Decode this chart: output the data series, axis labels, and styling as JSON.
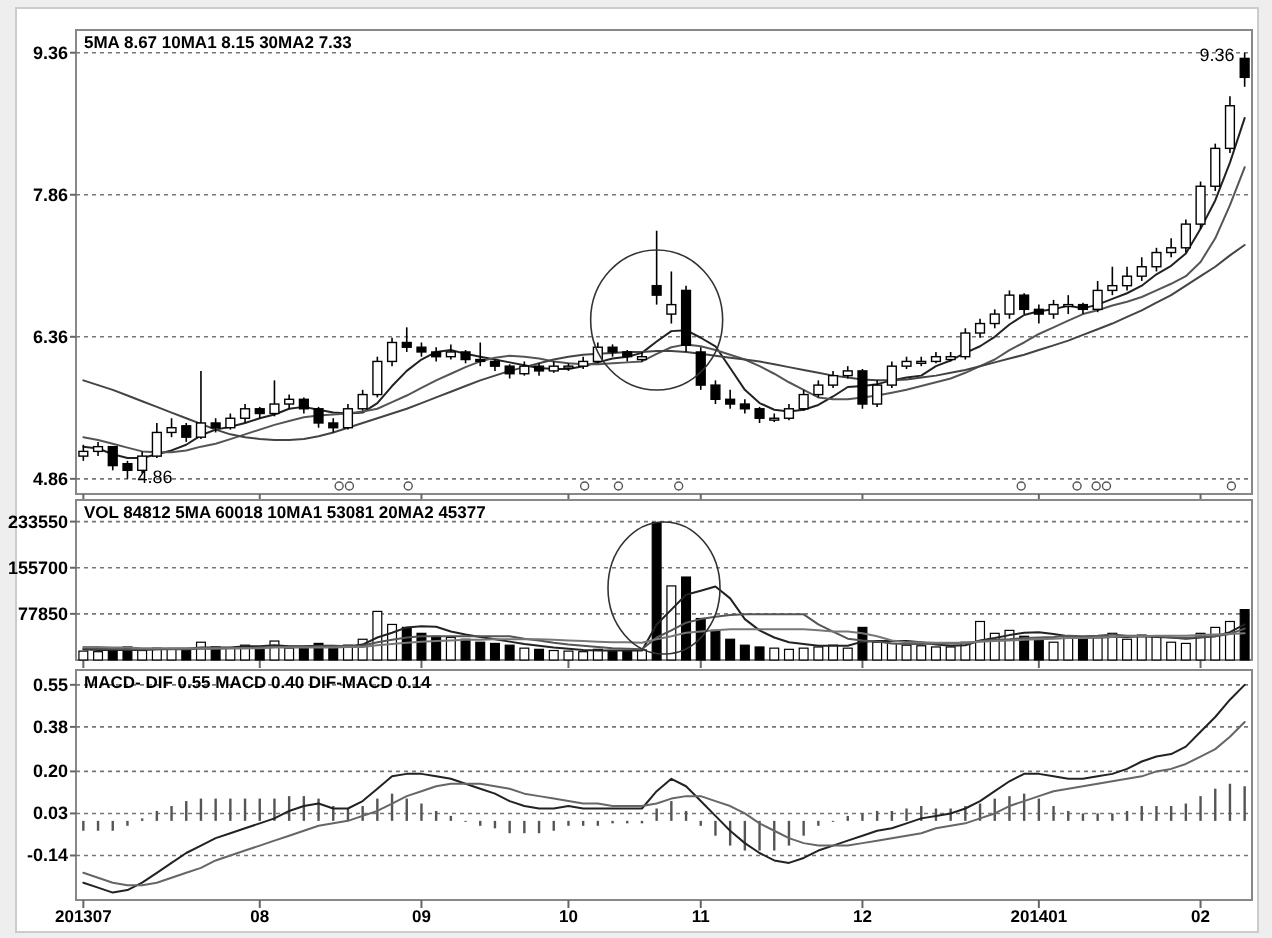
{
  "chart_data": [
    {
      "type": "candlestick",
      "title": "5MA 8.67  10MA1 8.15  30MA2 7.33",
      "categories": [
        "201307",
        null,
        null,
        null,
        null,
        null,
        null,
        null,
        null,
        null,
        null,
        null,
        "08",
        null,
        null,
        null,
        null,
        null,
        null,
        null,
        null,
        null,
        null,
        "09",
        null,
        null,
        null,
        null,
        null,
        null,
        null,
        null,
        null,
        "10",
        null,
        null,
        null,
        null,
        null,
        null,
        null,
        null,
        "11",
        null,
        null,
        null,
        null,
        null,
        null,
        null,
        null,
        null,
        null,
        "12",
        null,
        null,
        null,
        null,
        null,
        null,
        null,
        null,
        null,
        null,
        null,
        "201401",
        null,
        null,
        null,
        null,
        null,
        null,
        null,
        null,
        null,
        null,
        "02",
        null,
        null,
        null
      ],
      "ohlc": [
        [
          5.1,
          5.22,
          5.05,
          5.15
        ],
        [
          5.15,
          5.25,
          5.1,
          5.2
        ],
        [
          5.2,
          5.2,
          4.95,
          5.0
        ],
        [
          5.02,
          5.05,
          4.86,
          4.95
        ],
        [
          4.95,
          5.15,
          4.92,
          5.1
        ],
        [
          5.1,
          5.45,
          5.08,
          5.35
        ],
        [
          5.35,
          5.5,
          5.3,
          5.4
        ],
        [
          5.42,
          5.45,
          5.25,
          5.3
        ],
        [
          5.3,
          6.0,
          5.28,
          5.45
        ],
        [
          5.45,
          5.5,
          5.35,
          5.4
        ],
        [
          5.4,
          5.55,
          5.38,
          5.5
        ],
        [
          5.5,
          5.65,
          5.45,
          5.6
        ],
        [
          5.6,
          5.62,
          5.5,
          5.55
        ],
        [
          5.55,
          5.9,
          5.52,
          5.65
        ],
        [
          5.65,
          5.75,
          5.6,
          5.7
        ],
        [
          5.7,
          5.72,
          5.55,
          5.6
        ],
        [
          5.6,
          5.62,
          5.4,
          5.45
        ],
        [
          5.45,
          5.5,
          5.35,
          5.4
        ],
        [
          5.4,
          5.65,
          5.38,
          5.6
        ],
        [
          5.6,
          5.8,
          5.58,
          5.75
        ],
        [
          5.75,
          6.15,
          5.72,
          6.1
        ],
        [
          6.1,
          6.35,
          6.05,
          6.3
        ],
        [
          6.3,
          6.46,
          6.2,
          6.25
        ],
        [
          6.25,
          6.3,
          6.15,
          6.2
        ],
        [
          6.2,
          6.25,
          6.1,
          6.15
        ],
        [
          6.15,
          6.28,
          6.12,
          6.2
        ],
        [
          6.2,
          6.22,
          6.08,
          6.12
        ],
        [
          6.12,
          6.3,
          6.05,
          6.1
        ],
        [
          6.1,
          6.12,
          6.0,
          6.05
        ],
        [
          6.05,
          6.07,
          5.92,
          5.97
        ],
        [
          5.97,
          6.1,
          5.95,
          6.05
        ],
        [
          6.05,
          6.08,
          5.95,
          6.0
        ],
        [
          6.0,
          6.1,
          5.98,
          6.05
        ],
        [
          6.03,
          6.08,
          6.0,
          6.05
        ],
        [
          6.05,
          6.15,
          6.02,
          6.1
        ],
        [
          6.1,
          6.3,
          6.08,
          6.25
        ],
        [
          6.25,
          6.28,
          6.15,
          6.2
        ],
        [
          6.2,
          6.22,
          6.1,
          6.15
        ],
        [
          6.12,
          6.2,
          6.1,
          6.15
        ],
        [
          6.9,
          7.48,
          6.7,
          6.8
        ],
        [
          6.6,
          7.05,
          6.5,
          6.7
        ],
        [
          6.85,
          6.9,
          6.2,
          6.27
        ],
        [
          6.2,
          6.25,
          5.8,
          5.85
        ],
        [
          5.85,
          5.9,
          5.65,
          5.7
        ],
        [
          5.7,
          5.8,
          5.6,
          5.65
        ],
        [
          5.65,
          5.7,
          5.55,
          5.6
        ],
        [
          5.6,
          5.62,
          5.45,
          5.5
        ],
        [
          5.48,
          5.55,
          5.46,
          5.5
        ],
        [
          5.5,
          5.65,
          5.48,
          5.6
        ],
        [
          5.6,
          5.8,
          5.58,
          5.75
        ],
        [
          5.75,
          5.9,
          5.72,
          5.85
        ],
        [
          5.85,
          6.0,
          5.82,
          5.95
        ],
        [
          5.95,
          6.05,
          5.92,
          6.0
        ],
        [
          6.0,
          6.02,
          5.6,
          5.65
        ],
        [
          5.65,
          5.9,
          5.62,
          5.85
        ],
        [
          5.85,
          6.1,
          5.82,
          6.05
        ],
        [
          6.05,
          6.15,
          6.02,
          6.1
        ],
        [
          6.08,
          6.15,
          6.05,
          6.1
        ],
        [
          6.1,
          6.2,
          6.08,
          6.15
        ],
        [
          6.12,
          6.2,
          6.1,
          6.15
        ],
        [
          6.15,
          6.45,
          6.12,
          6.4
        ],
        [
          6.4,
          6.55,
          6.35,
          6.5
        ],
        [
          6.5,
          6.65,
          6.45,
          6.6
        ],
        [
          6.6,
          6.85,
          6.55,
          6.8
        ],
        [
          6.8,
          6.82,
          6.6,
          6.65
        ],
        [
          6.65,
          6.7,
          6.5,
          6.6
        ],
        [
          6.6,
          6.75,
          6.55,
          6.7
        ],
        [
          6.68,
          6.8,
          6.6,
          6.7
        ],
        [
          6.7,
          6.72,
          6.6,
          6.65
        ],
        [
          6.65,
          6.95,
          6.62,
          6.85
        ],
        [
          6.85,
          7.1,
          6.8,
          6.9
        ],
        [
          6.9,
          7.1,
          6.85,
          7.0
        ],
        [
          7.0,
          7.2,
          6.95,
          7.1
        ],
        [
          7.1,
          7.3,
          7.05,
          7.25
        ],
        [
          7.25,
          7.4,
          7.2,
          7.3
        ],
        [
          7.3,
          7.6,
          7.25,
          7.55
        ],
        [
          7.55,
          8.0,
          7.5,
          7.95
        ],
        [
          7.95,
          8.4,
          7.9,
          8.35
        ],
        [
          8.35,
          8.9,
          8.3,
          8.8
        ],
        [
          9.3,
          9.36,
          9.0,
          9.1
        ]
      ],
      "series": [
        {
          "type": "line",
          "color": "#222222",
          "values": [
            5.2,
            5.18,
            5.12,
            5.08,
            5.08,
            5.12,
            5.16,
            5.22,
            5.32,
            5.38,
            5.41,
            5.45,
            5.5,
            5.54,
            5.6,
            5.62,
            5.59,
            5.56,
            5.55,
            5.56,
            5.66,
            5.84,
            6.0,
            6.12,
            6.2,
            6.22,
            6.18,
            6.15,
            6.12,
            6.09,
            6.06,
            6.03,
            6.02,
            6.02,
            6.05,
            6.09,
            6.13,
            6.15,
            6.19,
            6.31,
            6.42,
            6.43,
            6.35,
            6.26,
            6.03,
            5.8,
            5.66,
            5.59,
            5.57,
            5.59,
            5.64,
            5.73,
            5.83,
            5.84,
            5.86,
            5.9,
            5.93,
            5.95,
            6.05,
            6.11,
            6.19,
            6.26,
            6.36,
            6.49,
            6.59,
            6.63,
            6.65,
            6.69,
            6.66,
            6.7,
            6.76,
            6.82,
            6.9,
            7.02,
            7.11,
            7.24,
            7.5,
            7.8,
            8.2,
            8.67
          ]
        },
        {
          "type": "line",
          "color": "#555555",
          "values": [
            5.3,
            5.27,
            5.23,
            5.19,
            5.15,
            5.14,
            5.14,
            5.16,
            5.2,
            5.23,
            5.28,
            5.33,
            5.38,
            5.43,
            5.47,
            5.51,
            5.53,
            5.54,
            5.55,
            5.57,
            5.6,
            5.67,
            5.74,
            5.82,
            5.9,
            5.97,
            6.04,
            6.1,
            6.14,
            6.16,
            6.15,
            6.13,
            6.1,
            6.08,
            6.07,
            6.07,
            6.08,
            6.09,
            6.1,
            6.18,
            6.25,
            6.28,
            6.26,
            6.22,
            6.17,
            6.12,
            6.05,
            5.97,
            5.88,
            5.8,
            5.72,
            5.7,
            5.7,
            5.72,
            5.74,
            5.77,
            5.8,
            5.84,
            5.88,
            5.92,
            5.98,
            6.05,
            6.12,
            6.22,
            6.3,
            6.39,
            6.46,
            6.53,
            6.6,
            6.64,
            6.69,
            6.73,
            6.78,
            6.85,
            6.92,
            7.0,
            7.15,
            7.4,
            7.75,
            8.15
          ]
        },
        {
          "type": "line",
          "color": "#444444",
          "values": [
            5.9,
            5.85,
            5.8,
            5.74,
            5.68,
            5.62,
            5.56,
            5.5,
            5.44,
            5.38,
            5.33,
            5.3,
            5.28,
            5.27,
            5.27,
            5.28,
            5.31,
            5.35,
            5.4,
            5.45,
            5.5,
            5.55,
            5.6,
            5.66,
            5.72,
            5.78,
            5.84,
            5.9,
            5.95,
            6.0,
            6.04,
            6.08,
            6.12,
            6.15,
            6.17,
            6.18,
            6.19,
            6.2,
            6.2,
            6.21,
            6.21,
            6.2,
            6.18,
            6.16,
            6.14,
            6.12,
            6.1,
            6.07,
            6.04,
            6.01,
            5.98,
            5.95,
            5.93,
            5.91,
            5.9,
            5.9,
            5.91,
            5.93,
            5.95,
            5.98,
            6.01,
            6.05,
            6.09,
            6.13,
            6.17,
            6.22,
            6.27,
            6.32,
            6.38,
            6.44,
            6.5,
            6.57,
            6.64,
            6.72,
            6.8,
            6.9,
            7.0,
            7.1,
            7.22,
            7.33
          ]
        }
      ],
      "annotations": [
        "9.36",
        "4.86"
      ],
      "ylim": [
        4.7,
        9.6
      ],
      "yticks": [
        4.86,
        6.36,
        7.86,
        9.36
      ],
      "grid": "y",
      "tick_labels": "y"
    },
    {
      "type": "bar",
      "title": "VOL 84812  5MA 60018  10MA1 53081  20MA2 45377",
      "categories": [
        "201307",
        null,
        null,
        null,
        null,
        null,
        null,
        null,
        null,
        null,
        null,
        null,
        "08",
        null,
        null,
        null,
        null,
        null,
        null,
        null,
        null,
        null,
        null,
        "09",
        null,
        null,
        null,
        null,
        null,
        null,
        null,
        null,
        null,
        "10",
        null,
        null,
        null,
        null,
        null,
        null,
        null,
        null,
        "11",
        null,
        null,
        null,
        null,
        null,
        null,
        null,
        null,
        null,
        null,
        "12",
        null,
        null,
        null,
        null,
        null,
        null,
        null,
        null,
        null,
        null,
        null,
        "201401",
        null,
        null,
        null,
        null,
        null,
        null,
        null,
        null,
        null,
        null,
        "02",
        null,
        null,
        null
      ],
      "series": [
        {
          "type": "bar",
          "values": [
            15000,
            14000,
            18000,
            22000,
            16000,
            20000,
            18000,
            17000,
            30000,
            22000,
            20000,
            25000,
            18000,
            32000,
            20000,
            22000,
            28000,
            20000,
            25000,
            35000,
            82000,
            60000,
            55000,
            45000,
            40000,
            38000,
            35000,
            30000,
            28000,
            25000,
            20000,
            18000,
            16000,
            15000,
            14000,
            18000,
            16000,
            15000,
            17000,
            232000,
            125000,
            140000,
            70000,
            50000,
            35000,
            25000,
            22000,
            20000,
            18000,
            20000,
            22000,
            25000,
            20000,
            55000,
            30000,
            28000,
            25000,
            24000,
            22000,
            22000,
            30000,
            65000,
            45000,
            50000,
            40000,
            35000,
            30000,
            40000,
            35000,
            38000,
            45000,
            35000,
            42000,
            40000,
            30000,
            28000,
            45000,
            55000,
            65000,
            85000
          ],
          "colors": [
            "#ffffff",
            "#ffffff",
            "#000000",
            "#000000",
            "#ffffff",
            "#ffffff",
            "#ffffff",
            "#000000",
            "#ffffff",
            "#000000",
            "#ffffff",
            "#ffffff",
            "#000000",
            "#ffffff",
            "#ffffff",
            "#000000",
            "#000000",
            "#000000",
            "#ffffff",
            "#ffffff",
            "#ffffff",
            "#ffffff",
            "#000000",
            "#000000",
            "#000000",
            "#ffffff",
            "#000000",
            "#000000",
            "#000000",
            "#000000",
            "#ffffff",
            "#000000",
            "#ffffff",
            "#ffffff",
            "#ffffff",
            "#ffffff",
            "#000000",
            "#000000",
            "#ffffff",
            "#000000",
            "#ffffff",
            "#000000",
            "#000000",
            "#000000",
            "#000000",
            "#000000",
            "#000000",
            "#ffffff",
            "#ffffff",
            "#ffffff",
            "#ffffff",
            "#ffffff",
            "#ffffff",
            "#000000",
            "#ffffff",
            "#ffffff",
            "#ffffff",
            "#ffffff",
            "#ffffff",
            "#ffffff",
            "#ffffff",
            "#ffffff",
            "#ffffff",
            "#ffffff",
            "#000000",
            "#000000",
            "#ffffff",
            "#ffffff",
            "#000000",
            "#ffffff",
            "#ffffff",
            "#ffffff",
            "#ffffff",
            "#ffffff",
            "#ffffff",
            "#ffffff",
            "#ffffff",
            "#ffffff",
            "#ffffff",
            "#000000"
          ]
        },
        {
          "type": "line",
          "color": "#222222",
          "values": [
            18000,
            17000,
            17000,
            17000,
            17000,
            18000,
            19000,
            19000,
            21000,
            21000,
            21000,
            23000,
            23000,
            25000,
            23000,
            23000,
            24000,
            24000,
            23000,
            26000,
            38000,
            46000,
            55000,
            57000,
            56000,
            48000,
            43000,
            39000,
            35000,
            31000,
            27000,
            24000,
            21000,
            19000,
            17000,
            16000,
            16000,
            16000,
            16000,
            60000,
            85000,
            110000,
            117000,
            124000,
            104000,
            69000,
            50000,
            38000,
            30000,
            27000,
            24000,
            24000,
            24000,
            31000,
            32000,
            32000,
            32000,
            30000,
            26000,
            24000,
            25000,
            33000,
            37000,
            42000,
            46000,
            47000,
            44000,
            40000,
            38000,
            38000,
            39000,
            39000,
            40000,
            39000,
            38000,
            36000,
            38000,
            40000,
            47000,
            60000
          ]
        },
        {
          "type": "line",
          "color": "#555555",
          "values": [
            20000,
            19000,
            19000,
            18000,
            18000,
            18000,
            18000,
            18000,
            19000,
            19000,
            20000,
            20000,
            21000,
            22000,
            22000,
            22000,
            23000,
            23000,
            24000,
            24000,
            30000,
            34000,
            38000,
            40000,
            40000,
            40000,
            40000,
            40000,
            40000,
            40000,
            36000,
            33000,
            29000,
            26000,
            24000,
            22000,
            20000,
            19000,
            18000,
            38000,
            50000,
            63000,
            69000,
            73000,
            76000,
            77000,
            77000,
            77000,
            77000,
            77000,
            60000,
            48000,
            36000,
            33000,
            31000,
            28000,
            27000,
            27000,
            28000,
            28000,
            28000,
            32000,
            34000,
            35000,
            37000,
            38000,
            39000,
            41000,
            40000,
            41000,
            43000,
            41000,
            41000,
            40000,
            38000,
            37000,
            39000,
            40000,
            44000,
            53000
          ]
        },
        {
          "type": "line",
          "color": "#777777",
          "values": [
            22000,
            22000,
            21000,
            21000,
            20000,
            20000,
            20000,
            20000,
            20000,
            20000,
            20000,
            20000,
            20000,
            21000,
            21000,
            21000,
            21000,
            21000,
            22000,
            22000,
            25000,
            27000,
            29000,
            31000,
            32000,
            33000,
            34000,
            34000,
            35000,
            35000,
            35000,
            35000,
            34000,
            33000,
            32000,
            31000,
            30000,
            30000,
            29000,
            35000,
            40000,
            46000,
            48000,
            50000,
            52000,
            52000,
            52000,
            52000,
            52000,
            52000,
            50000,
            48000,
            48000,
            45000,
            40000,
            33000,
            30000,
            30000,
            29000,
            29000,
            29000,
            31000,
            32000,
            33000,
            34000,
            35000,
            36000,
            37000,
            37000,
            38000,
            39000,
            40000,
            40000,
            41000,
            41000,
            41000,
            42000,
            43000,
            44000,
            45000
          ]
        }
      ],
      "ylim": [
        0,
        270000
      ],
      "yticks": [
        77850,
        155700,
        233550
      ],
      "grid": "y",
      "tick_labels": "y"
    },
    {
      "type": "line",
      "title": "MACD- DIF 0.55  MACD 0.40  DIF-MACD 0.14",
      "categories": [
        "201307",
        null,
        null,
        null,
        null,
        null,
        null,
        null,
        null,
        null,
        null,
        null,
        "08",
        null,
        null,
        null,
        null,
        null,
        null,
        null,
        null,
        null,
        null,
        "09",
        null,
        null,
        null,
        null,
        null,
        null,
        null,
        null,
        null,
        "10",
        null,
        null,
        null,
        null,
        null,
        null,
        null,
        null,
        "11",
        null,
        null,
        null,
        null,
        null,
        null,
        null,
        null,
        null,
        null,
        "12",
        null,
        null,
        null,
        null,
        null,
        null,
        null,
        null,
        null,
        null,
        null,
        "201401",
        null,
        null,
        null,
        null,
        null,
        null,
        null,
        null,
        null,
        null,
        "02",
        null,
        null,
        null
      ],
      "series": [
        {
          "type": "bar",
          "color": "#555555",
          "values": [
            -0.04,
            -0.04,
            -0.04,
            -0.02,
            0.01,
            0.04,
            0.06,
            0.08,
            0.09,
            0.09,
            0.09,
            0.09,
            0.09,
            0.09,
            0.1,
            0.1,
            0.09,
            0.06,
            0.05,
            0.06,
            0.09,
            0.11,
            0.09,
            0.07,
            0.04,
            0.02,
            0.0,
            -0.02,
            -0.03,
            -0.05,
            -0.05,
            -0.05,
            -0.04,
            -0.02,
            -0.02,
            -0.02,
            -0.01,
            -0.01,
            -0.01,
            0.05,
            0.08,
            0.04,
            -0.02,
            -0.06,
            -0.1,
            -0.12,
            -0.12,
            -0.12,
            -0.1,
            -0.06,
            -0.02,
            0.0,
            0.02,
            0.03,
            0.04,
            0.04,
            0.05,
            0.06,
            0.05,
            0.05,
            0.06,
            0.07,
            0.09,
            0.1,
            0.11,
            0.09,
            0.06,
            0.04,
            0.03,
            0.03,
            0.03,
            0.04,
            0.06,
            0.06,
            0.06,
            0.07,
            0.1,
            0.13,
            0.15,
            0.14
          ]
        },
        {
          "type": "line",
          "color": "#222222",
          "values": [
            -0.25,
            -0.27,
            -0.29,
            -0.28,
            -0.25,
            -0.21,
            -0.17,
            -0.13,
            -0.1,
            -0.07,
            -0.05,
            -0.03,
            -0.01,
            0.01,
            0.04,
            0.06,
            0.07,
            0.05,
            0.05,
            0.08,
            0.13,
            0.18,
            0.19,
            0.19,
            0.18,
            0.17,
            0.15,
            0.13,
            0.11,
            0.08,
            0.06,
            0.05,
            0.05,
            0.06,
            0.05,
            0.05,
            0.05,
            0.05,
            0.05,
            0.12,
            0.17,
            0.14,
            0.08,
            0.02,
            -0.04,
            -0.09,
            -0.13,
            -0.16,
            -0.17,
            -0.15,
            -0.12,
            -0.1,
            -0.08,
            -0.06,
            -0.04,
            -0.03,
            -0.01,
            0.01,
            0.02,
            0.03,
            0.05,
            0.08,
            0.12,
            0.16,
            0.19,
            0.19,
            0.18,
            0.17,
            0.17,
            0.18,
            0.19,
            0.21,
            0.24,
            0.26,
            0.27,
            0.3,
            0.36,
            0.42,
            0.49,
            0.55
          ]
        },
        {
          "type": "line",
          "color": "#666666",
          "values": [
            -0.21,
            -0.23,
            -0.25,
            -0.26,
            -0.26,
            -0.25,
            -0.23,
            -0.21,
            -0.19,
            -0.16,
            -0.14,
            -0.12,
            -0.1,
            -0.08,
            -0.06,
            -0.04,
            -0.02,
            -0.01,
            0.0,
            0.02,
            0.04,
            0.07,
            0.1,
            0.12,
            0.14,
            0.15,
            0.15,
            0.15,
            0.14,
            0.13,
            0.11,
            0.1,
            0.09,
            0.08,
            0.07,
            0.07,
            0.06,
            0.06,
            0.06,
            0.07,
            0.09,
            0.1,
            0.1,
            0.08,
            0.06,
            0.03,
            -0.01,
            -0.04,
            -0.07,
            -0.09,
            -0.1,
            -0.1,
            -0.1,
            -0.09,
            -0.08,
            -0.07,
            -0.06,
            -0.05,
            -0.03,
            -0.02,
            -0.01,
            0.01,
            0.03,
            0.06,
            0.08,
            0.1,
            0.12,
            0.13,
            0.14,
            0.15,
            0.16,
            0.17,
            0.18,
            0.2,
            0.21,
            0.23,
            0.26,
            0.29,
            0.34,
            0.4
          ]
        }
      ],
      "ylim": [
        -0.32,
        0.61
      ],
      "yticks": [
        -0.14,
        0.03,
        {
          "value": 0.2,
          "label": "0.20"
        },
        0.38,
        0.55
      ],
      "grid": "y"
    }
  ]
}
